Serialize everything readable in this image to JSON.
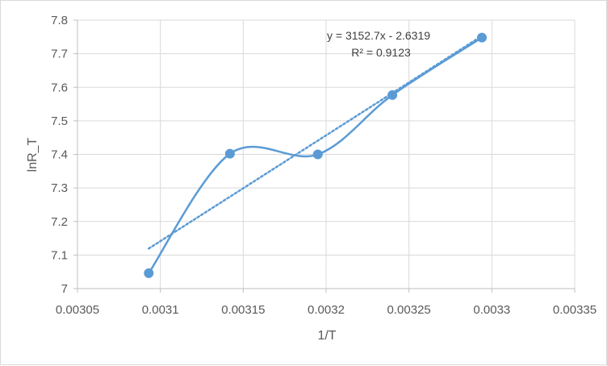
{
  "chart_data": {
    "type": "scatter",
    "title": "",
    "xlabel": "1/T",
    "ylabel": "lnR_T",
    "xlim": [
      0.00305,
      0.00335
    ],
    "ylim": [
      7.0,
      7.8
    ],
    "xticks": [
      "0.00305",
      "0.0031",
      "0.00315",
      "0.0032",
      "0.00325",
      "0.0033",
      "0.00335"
    ],
    "yticks": [
      "7",
      "7.1",
      "7.2",
      "7.3",
      "7.4",
      "7.5",
      "7.6",
      "7.7",
      "7.8"
    ],
    "grid": true,
    "legend": "none",
    "series": [
      {
        "x": [
          0.003093,
          0.003142,
          0.003195,
          0.00324,
          0.003294
        ],
        "y": [
          7.046,
          7.402,
          7.4,
          7.577,
          7.748
        ],
        "color": "#5b9bd5",
        "line": "smooth",
        "markers": true
      }
    ],
    "trendline": {
      "type": "linear",
      "slope": 3152.7,
      "intercept": -2.6319,
      "style": "dotted",
      "color": "#5b9bd5",
      "equation": "y = 3152.7x - 2.6319",
      "r2_label": "R² = 0.9123"
    }
  }
}
